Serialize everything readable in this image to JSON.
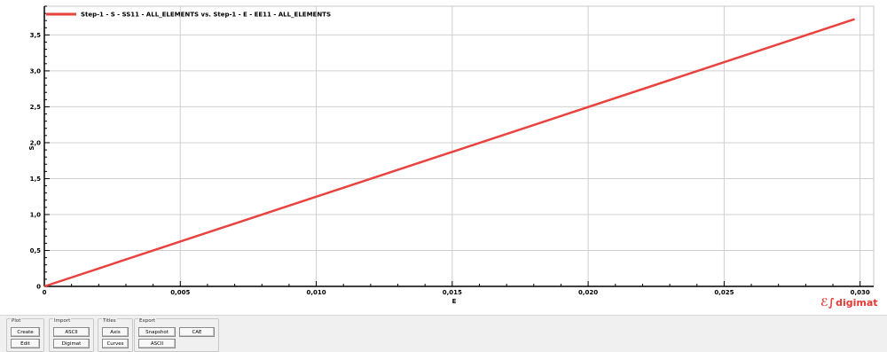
{
  "chart_data": {
    "type": "line",
    "title": "",
    "xlabel": "E",
    "ylabel": "S",
    "xlim": [
      0,
      0.0305
    ],
    "ylim": [
      0,
      3.9
    ],
    "x_ticks": [
      0,
      0.005,
      0.01,
      0.015,
      0.02,
      0.025,
      0.03
    ],
    "x_tick_labels": [
      "0",
      "0,005",
      "0,010",
      "0,015",
      "0,020",
      "0,025",
      "0,030"
    ],
    "y_ticks": [
      0,
      0.5,
      1.0,
      1.5,
      2.0,
      2.5,
      3.0,
      3.5
    ],
    "y_tick_labels": [
      "0",
      "0,5",
      "1,0",
      "1,5",
      "2,0",
      "2,5",
      "3,0",
      "3,5"
    ],
    "grid": true,
    "legend_position": "top-left",
    "series": [
      {
        "name": "Step-1 - S - SS11 - ALL_ELEMENTS vs. Step-1 - E - EE11 - ALL_ELEMENTS",
        "color": "#e8433e",
        "x": [
          0,
          0.0298
        ],
        "y": [
          0,
          3.72
        ]
      }
    ]
  },
  "logo": {
    "text": "digimat",
    "color": "#e53935"
  },
  "toolbar": {
    "groups": [
      {
        "title": "Plot",
        "buttons": [
          "Create",
          "Edit"
        ]
      },
      {
        "title": "Import",
        "buttons": [
          "ASCII",
          "Digimat"
        ]
      },
      {
        "title": "Titles",
        "buttons": [
          "Axis",
          "Curves"
        ]
      },
      {
        "title": "Export",
        "buttons": [
          "Snapshot",
          "CAE",
          "ASCII"
        ]
      }
    ]
  }
}
